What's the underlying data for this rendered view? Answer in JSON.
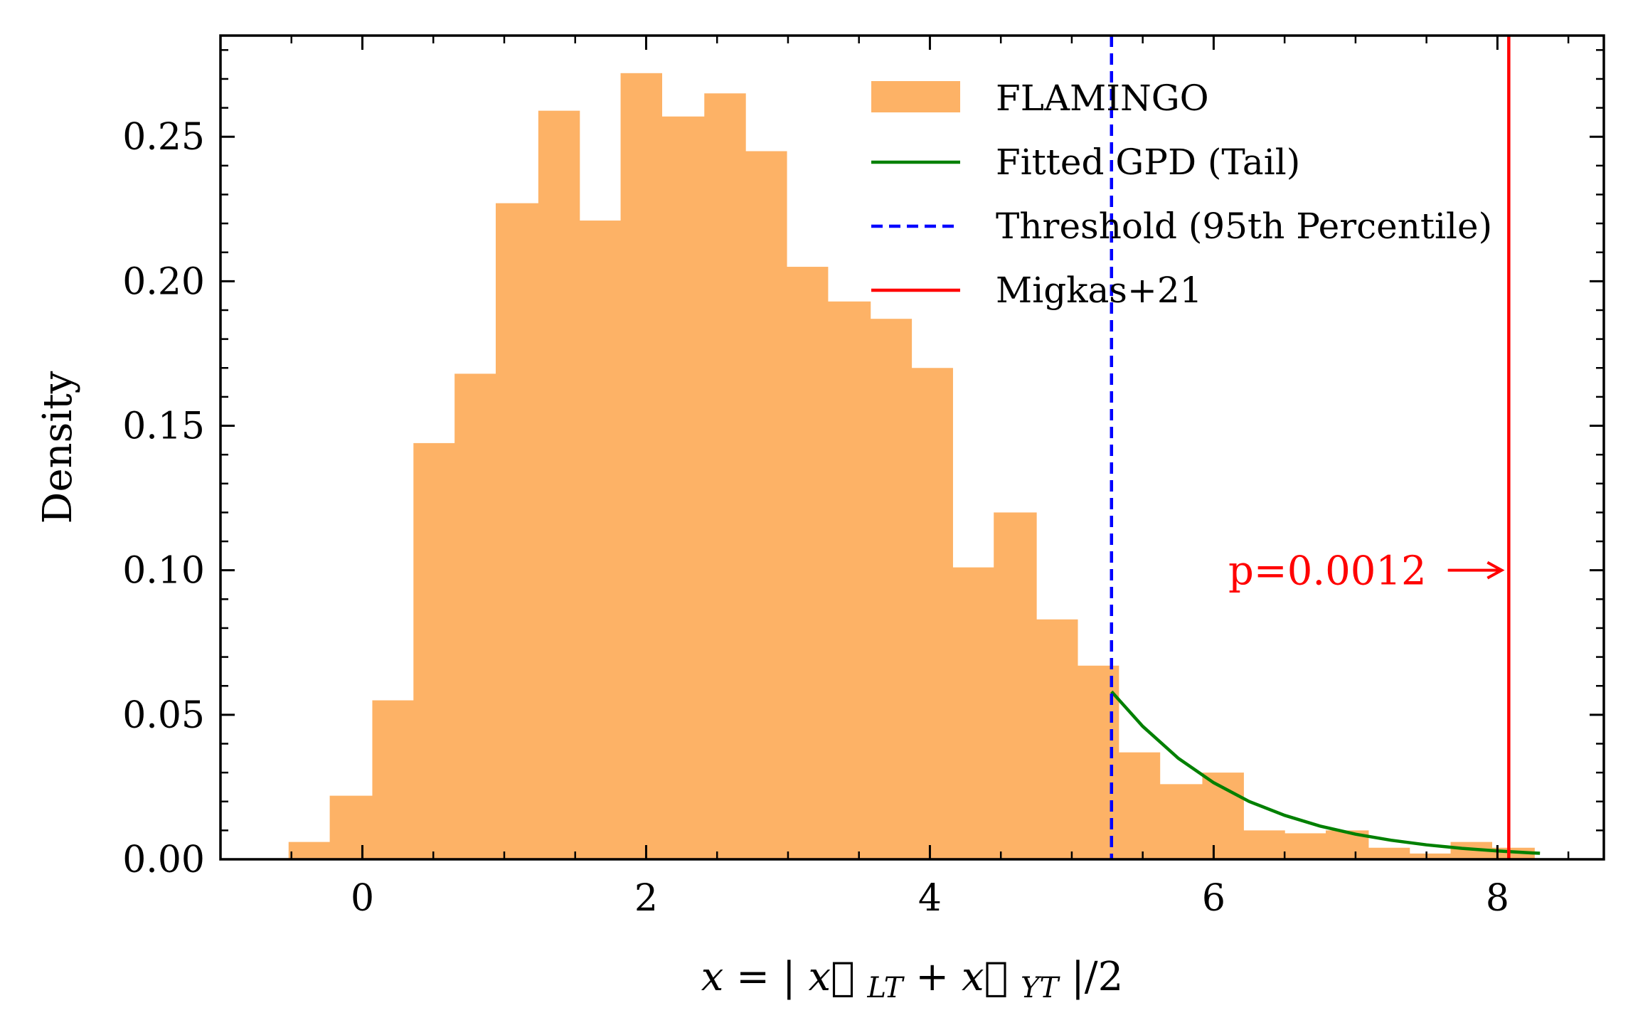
{
  "chart_data": {
    "type": "bar",
    "xlabel": "x = |x⃗LT + x⃗YT|/2",
    "ylabel": "Density",
    "xlim": [
      -1.0,
      8.75
    ],
    "ylim": [
      0,
      0.285
    ],
    "xticks": [
      0,
      2,
      4,
      6,
      8
    ],
    "yticks": [
      0.0,
      0.05,
      0.1,
      0.15,
      0.2,
      0.25
    ],
    "xtick_labels": [
      "0",
      "2",
      "4",
      "6",
      "8"
    ],
    "ytick_labels": [
      "0.00",
      "0.05",
      "0.10",
      "0.15",
      "0.20",
      "0.25"
    ],
    "grid": false,
    "legend_position": "top-right",
    "histogram": {
      "name": "FLAMINGO",
      "color": "#fdb266",
      "bin_edges": [
        -0.52,
        -0.23,
        0.07,
        0.36,
        0.65,
        0.94,
        1.24,
        1.53,
        1.82,
        2.11,
        2.41,
        2.7,
        2.99,
        3.28,
        3.58,
        3.87,
        4.16,
        4.45,
        4.75,
        5.04,
        5.33,
        5.62,
        5.92,
        6.21,
        6.5,
        6.79,
        7.09,
        7.38,
        7.67,
        7.96,
        8.26
      ],
      "density": [
        0.006,
        0.022,
        0.055,
        0.144,
        0.168,
        0.227,
        0.259,
        0.221,
        0.272,
        0.257,
        0.265,
        0.245,
        0.205,
        0.193,
        0.187,
        0.17,
        0.101,
        0.12,
        0.083,
        0.067,
        0.037,
        0.026,
        0.03,
        0.01,
        0.009,
        0.01,
        0.004,
        0.002,
        0.006,
        0.004
      ]
    },
    "series": [
      {
        "name": "Fitted GPD (Tail)",
        "type": "line",
        "color": "#008000",
        "x": [
          5.28,
          5.5,
          5.75,
          6.0,
          6.25,
          6.5,
          6.75,
          7.0,
          7.25,
          7.5,
          7.75,
          8.0,
          8.25,
          8.3
        ],
        "y": [
          0.058,
          0.046,
          0.035,
          0.0265,
          0.02,
          0.0152,
          0.0115,
          0.0087,
          0.0066,
          0.005,
          0.0038,
          0.0029,
          0.0022,
          0.0021
        ]
      }
    ],
    "vlines": [
      {
        "name": "Threshold (95th Percentile)",
        "x": 5.28,
        "color": "#0000ff",
        "style": "dashed"
      },
      {
        "name": "Migkas+21",
        "x": 8.08,
        "color": "#ff0000",
        "style": "solid"
      }
    ],
    "annotation": {
      "text": "p=0.0012",
      "color": "#ff0000",
      "x": 7.45,
      "y": 0.1,
      "arrow_to_x": 8.03
    },
    "legend": [
      "FLAMINGO",
      "Fitted GPD (Tail)",
      "Threshold (95th Percentile)",
      "Migkas+21"
    ]
  }
}
